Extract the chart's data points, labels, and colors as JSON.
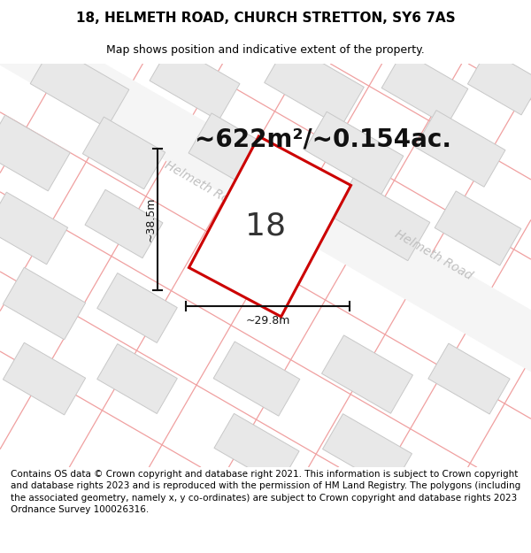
{
  "title": "18, HELMETH ROAD, CHURCH STRETTON, SY6 7AS",
  "subtitle": "Map shows position and indicative extent of the property.",
  "footer": "Contains OS data © Crown copyright and database right 2021. This information is subject to Crown copyright and database rights 2023 and is reproduced with the permission of HM Land Registry. The polygons (including the associated geometry, namely x, y co-ordinates) are subject to Crown copyright and database rights 2023 Ordnance Survey 100026316.",
  "area_label": "~622m²/~0.154ac.",
  "property_number": "18",
  "width_label": "~29.8m",
  "height_label": "~38.5m",
  "map_bg": "#ffffff",
  "building_fill": "#e8e8e8",
  "building_edge": "#c8c8c8",
  "property_color": "#cc0000",
  "plot_line_color": "#f0a0a0",
  "road_label_color": "#c0c0c0",
  "annotation_color": "#111111",
  "title_fontsize": 11,
  "subtitle_fontsize": 9,
  "footer_fontsize": 7.5,
  "area_fontsize": 20,
  "number_fontsize": 26,
  "road_label_fontsize": 10
}
